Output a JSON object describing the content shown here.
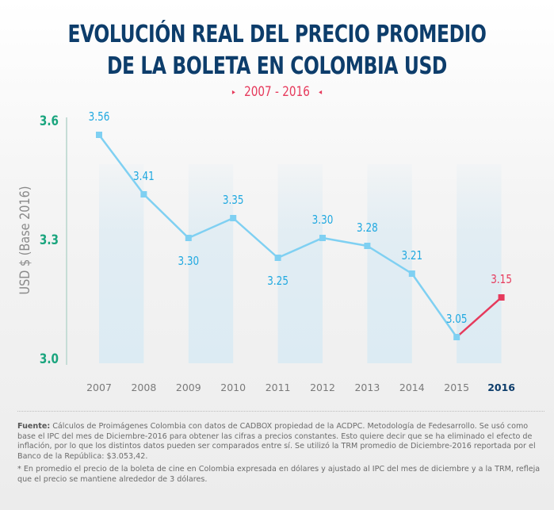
{
  "title_line1": "EVOLUCIÓN REAL DEL PRECIO PROMEDIO",
  "title_line2": "DE LA BOLETA EN COLOMBIA USD",
  "subtitle": "2007 - 2016",
  "subtitle_arrow_left": "▸",
  "subtitle_arrow_right": "◂",
  "colors": {
    "title": "#0d3d6b",
    "accent_red": "#e63a5c",
    "line_blue": "#7fd0f2",
    "label_blue": "#1fa8e0",
    "axis_green": "#1aa57e",
    "band": "#dcebf3",
    "tick_gray": "#7a7a7a"
  },
  "chart_data": {
    "type": "line",
    "title": "EVOLUCIÓN REAL DEL PRECIO PROMEDIO DE LA BOLETA EN COLOMBIA USD",
    "subtitle": "2007 - 2016",
    "xlabel": "",
    "ylabel": "USD $ (Base 2016)",
    "categories": [
      "2007",
      "2008",
      "2009",
      "2010",
      "2011",
      "2012",
      "2013",
      "2014",
      "2015",
      "2016"
    ],
    "values": [
      3.56,
      3.41,
      3.3,
      3.35,
      3.25,
      3.3,
      3.28,
      3.21,
      3.05,
      3.15
    ],
    "data_labels": [
      "3.56",
      "3.41",
      "3.30",
      "3.35",
      "3.25",
      "3.30",
      "3.28",
      "3.21",
      "3.05",
      "3.15"
    ],
    "label_positions": [
      "above",
      "above",
      "below",
      "above",
      "below",
      "above",
      "above",
      "above",
      "above",
      "above"
    ],
    "highlight": {
      "from": "2015",
      "to": "2016",
      "color": "#e63a5c"
    },
    "shaded_bands": [
      [
        "2007",
        "2008"
      ],
      [
        "2009",
        "2010"
      ],
      [
        "2011",
        "2012"
      ],
      [
        "2013",
        "2014"
      ],
      [
        "2015",
        "2016"
      ]
    ],
    "yticks": [
      3.0,
      3.3,
      3.6
    ],
    "ytick_labels": [
      "3.0",
      "3.3",
      "3.6"
    ],
    "ylim": [
      3.0,
      3.6
    ],
    "grid": false,
    "legend": "none"
  },
  "footer": {
    "source_label": "Fuente:",
    "source_text": " Cálculos de Proimágenes Colombia con datos de CADBOX propiedad de la ACDPC. Metodología de Fedesarrollo. Se usó como base el IPC del mes de Diciembre-2016 para obtener las cifras a precios constantes. Esto quiere decir que se ha eliminado el efecto de inflación, por lo que los distintos datos pueden ser comparados entre sí. Se utilizó la TRM promedio de Diciembre-2016 reportada por el Banco de la República: $3.053,42.",
    "note": "* En promedio el precio de la boleta de cine en Colombia expresada en dólares y ajustado al IPC del mes de diciembre y a la TRM, refleja que el precio se mantiene alrededor de 3 dólares."
  }
}
